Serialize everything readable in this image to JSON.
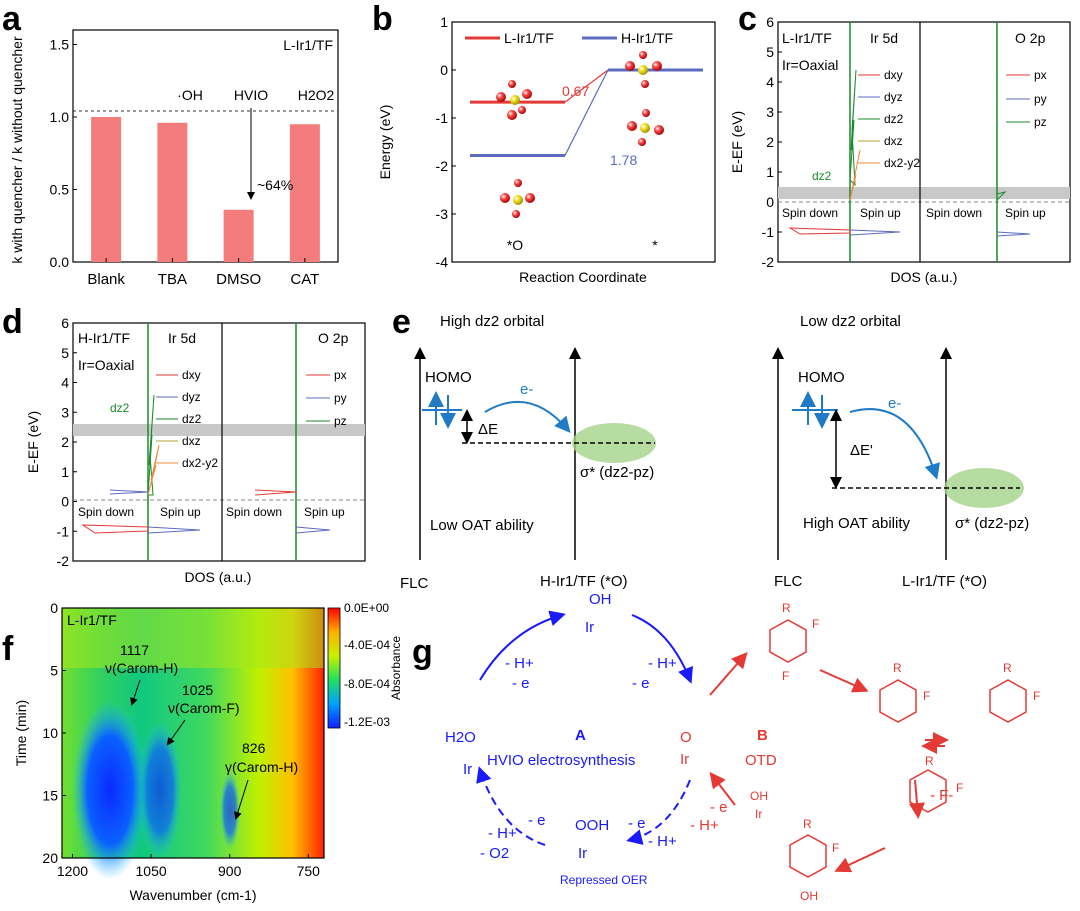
{
  "panels": {
    "a": {
      "letter": "a",
      "tag": "L-Ir1/TF",
      "ylabel": "k with quencher / k without quencher",
      "annotation": "~64%",
      "bar_top_labels": [
        "·OH",
        "HVIO",
        "H2O2"
      ]
    },
    "b": {
      "letter": "b",
      "legend": [
        "L-Ir1/TF",
        "H-Ir1/TF"
      ],
      "ylabel": "Energy (eV)",
      "xlabel": "Reaction Coordinate",
      "values_shown": [
        "0.67",
        "1.78"
      ],
      "states": [
        "*O",
        "*"
      ]
    },
    "c": {
      "letter": "c",
      "tag": "L-Ir1/TF",
      "bond": "Ir=Oaxial",
      "sub1": "Ir 5d",
      "sub2": "O 2p",
      "ylabel": "E-EF (eV)",
      "xlabel": "DOS (a.u.)",
      "spin_down": "Spin down",
      "spin_up": "Spin up",
      "d_legend": [
        "dxy",
        "dyz",
        "dz2",
        "dxz",
        "dx2-y2"
      ],
      "p_legend": [
        "px",
        "py",
        "pz"
      ],
      "peak_label": "dz2"
    },
    "d": {
      "letter": "d",
      "tag": "H-Ir1/TF",
      "bond": "Ir=Oaxial",
      "sub1": "Ir 5d",
      "sub2": "O 2p",
      "ylabel": "E-EF (eV)",
      "xlabel": "DOS (a.u.)",
      "spin_down": "Spin down",
      "spin_up": "Spin up",
      "peak_label": "dz2"
    },
    "e": {
      "letter": "e",
      "left_title": "High dz2 orbital",
      "right_title": "Low dz2 orbital",
      "homo": "HOMO",
      "electron": "e-",
      "dE": "ΔE",
      "dE2": "ΔE'",
      "sigma": "σ* (dz2-pz)",
      "left_ability": "Low OAT ability",
      "right_ability": "High OAT ability",
      "flc": "FLC",
      "left_cat": "H-Ir1/TF (*O)",
      "right_cat": "L-Ir1/TF (*O)"
    },
    "f": {
      "letter": "f",
      "tag": "L-Ir1/TF",
      "xlabel": "Wavenumber (cm-1)",
      "ylabel": "Time (min)",
      "colorbar_title": "Absorbance",
      "colorbar_ticks": [
        "0.0E+00",
        "-4.0E-04",
        "-8.0E-04",
        "-1.2E-03"
      ],
      "peaks": [
        {
          "wn": "1117",
          "mode": "ν(Carom-H)"
        },
        {
          "wn": "1025",
          "mode": "ν(Carom-F)"
        },
        {
          "wn": "826",
          "mode": "γ(Carom-H)"
        }
      ]
    },
    "g": {
      "letter": "g",
      "cycle_a_letter": "A",
      "cycle_a_name": "HVIO electrosynthesis",
      "cycle_b_letter": "B",
      "cycle_b_name": "OTD",
      "repressed": "Repressed OER",
      "steps": [
        "- H+",
        "- e",
        "- H+",
        "- e",
        "- H+",
        "- O2",
        "- e",
        "- H+",
        "- F-",
        "- e",
        "- H+"
      ],
      "species": [
        "OH",
        "Ir",
        "O",
        "OOH",
        "H2O",
        "F",
        "R",
        "OH"
      ]
    }
  },
  "chart_data": [
    {
      "panel": "a",
      "type": "bar",
      "categories": [
        "Blank",
        "TBA",
        "DMSO",
        "CAT"
      ],
      "values": [
        1.0,
        0.96,
        0.36,
        0.95
      ],
      "ylim": [
        0,
        1.6
      ],
      "yticks": [
        0.0,
        0.5,
        1.0,
        1.5
      ],
      "reference_line": 1.0,
      "color": "#f47c7c",
      "ylabel": "k with quencher / k without quencher"
    },
    {
      "panel": "b",
      "type": "line",
      "ylabel": "Energy (eV)",
      "xlabel": "Reaction Coordinate",
      "ylim": [
        -4,
        1
      ],
      "yticks": [
        -4,
        -3,
        -2,
        -1,
        0,
        1
      ],
      "series": [
        {
          "name": "L-Ir1/TF",
          "color": "#e53935",
          "values": [
            -0.67,
            0.0
          ]
        },
        {
          "name": "H-Ir1/TF",
          "color": "#5c6bc0",
          "values": [
            -1.78,
            0.0
          ]
        }
      ],
      "categories": [
        "*O",
        "*"
      ]
    },
    {
      "panel": "c",
      "type": "line",
      "ylabel": "E-EF (eV)",
      "xlabel": "DOS (a.u.)",
      "ylim": [
        -2,
        6
      ],
      "yticks": [
        -2,
        -1,
        0,
        1,
        2,
        3,
        4,
        5,
        6
      ],
      "highlight_band": [
        0.1,
        0.5
      ]
    },
    {
      "panel": "d",
      "type": "line",
      "ylabel": "E-EF (eV)",
      "xlabel": "DOS (a.u.)",
      "ylim": [
        -2,
        6
      ],
      "yticks": [
        -2,
        -1,
        0,
        1,
        2,
        3,
        4,
        5,
        6
      ],
      "highlight_band": [
        2.2,
        2.6
      ]
    },
    {
      "panel": "f",
      "type": "heatmap",
      "xlabel": "Wavenumber (cm-1)",
      "ylabel": "Time (min)",
      "xticks": [
        1200,
        1050,
        900,
        750
      ],
      "yticks": [
        0,
        5,
        10,
        15,
        20
      ],
      "colorbar_range": [
        -0.0012,
        0.0
      ]
    }
  ],
  "colors": {
    "bar": "#f47c7c",
    "red": "#e53935",
    "blue_line": "#5c6bc0",
    "cycle_blue": "#1a1aff",
    "cycle_red": "#e53935",
    "orbital_blue": "#1f7bc6",
    "sigma_green": "#a5d38a"
  }
}
